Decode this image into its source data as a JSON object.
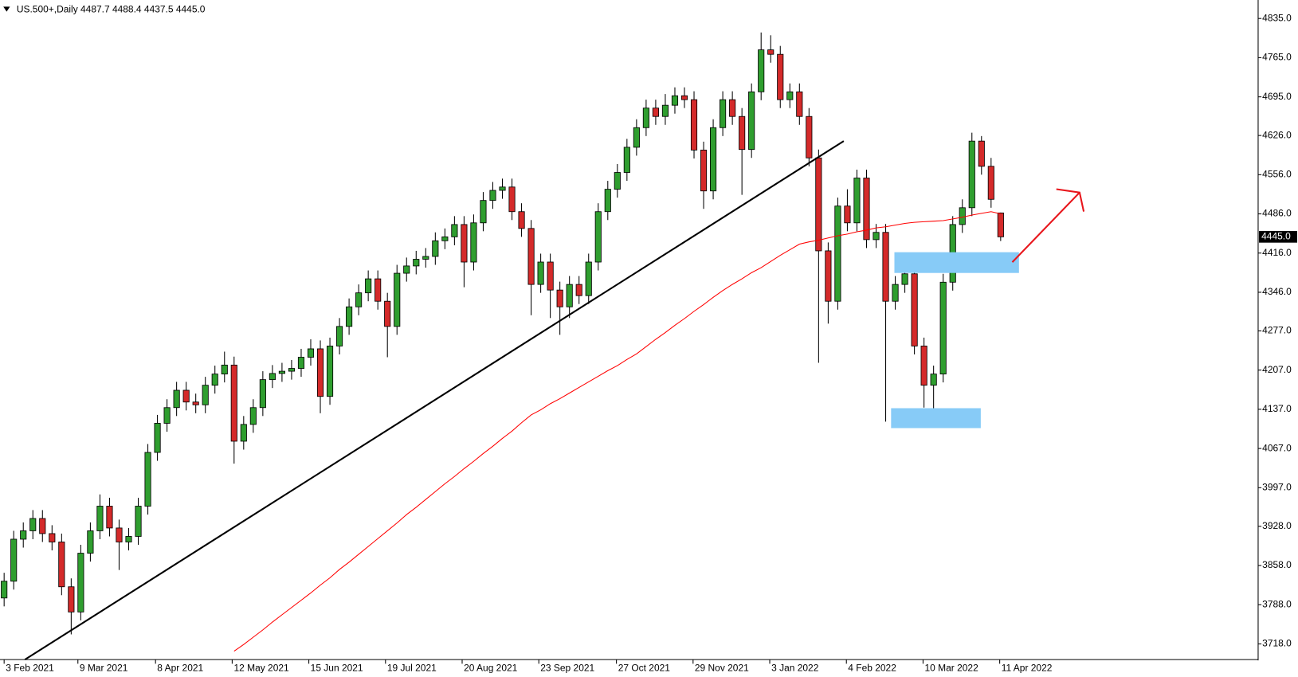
{
  "chart_data": {
    "type": "candlestick",
    "title": "US.500+,Daily  4487.7 4488.4 4437.5 4445.0",
    "open": [
      3800,
      3830,
      3905,
      3920,
      3942,
      3915,
      3900,
      3820,
      3775,
      3880,
      3920,
      3964,
      3925,
      3900,
      3910,
      3964,
      4060,
      4112,
      4140,
      4171,
      4150,
      4145,
      4180,
      4200,
      4216,
      4080,
      4110,
      4140,
      4190,
      4201,
      4205,
      4210,
      4230,
      4245,
      4160,
      4250,
      4285,
      4320,
      4345,
      4370,
      4330,
      4285,
      4380,
      4393,
      4405,
      4410,
      4438,
      4445,
      4467,
      4400,
      4470,
      4510,
      4528,
      4534,
      4490,
      4460,
      4360,
      4400,
      4350,
      4320,
      4360,
      4340,
      4400,
      4490,
      4530,
      4560,
      4605,
      4640,
      4675,
      4660,
      4680,
      4697,
      4690,
      4600,
      4527,
      4640,
      4690,
      4660,
      4601,
      4704,
      4779,
      4771,
      4690,
      4704,
      4660,
      4586,
      4420,
      4330,
      4500,
      4470,
      4550,
      4440,
      4453,
      4330,
      4360,
      4379,
      4250,
      4180,
      4200,
      4364,
      4467,
      4497,
      4616,
      4571,
      4487.7
    ],
    "high": [
      3845,
      3920,
      3935,
      3957,
      3957,
      3930,
      3915,
      3835,
      3895,
      3935,
      3985,
      3979,
      3940,
      3925,
      3979,
      4075,
      4127,
      4155,
      4186,
      4186,
      4165,
      4195,
      4215,
      4240,
      4231,
      4125,
      4155,
      4205,
      4216,
      4220,
      4225,
      4245,
      4262,
      4260,
      4265,
      4300,
      4335,
      4360,
      4385,
      4385,
      4345,
      4395,
      4408,
      4420,
      4425,
      4453,
      4460,
      4482,
      4482,
      4485,
      4525,
      4543,
      4549,
      4549,
      4505,
      4475,
      4415,
      4415,
      4365,
      4375,
      4375,
      4415,
      4505,
      4545,
      4575,
      4620,
      4655,
      4690,
      4690,
      4700,
      4712,
      4712,
      4705,
      4615,
      4655,
      4705,
      4705,
      4675,
      4719,
      4810,
      4805,
      4786,
      4719,
      4719,
      4675,
      4601,
      4435,
      4515,
      4530,
      4565,
      4565,
      4468,
      4468,
      4375,
      4394,
      4394,
      4265,
      4215,
      4379,
      4482,
      4512,
      4631,
      4625,
      4586,
      4488.4
    ],
    "low": [
      3785,
      3815,
      3890,
      3905,
      3900,
      3885,
      3805,
      3735,
      3760,
      3865,
      3905,
      3910,
      3850,
      3885,
      3895,
      3949,
      4045,
      4097,
      4125,
      4135,
      4130,
      4130,
      4165,
      4185,
      4040,
      4065,
      4095,
      4125,
      4175,
      4186,
      4190,
      4195,
      4215,
      4130,
      4145,
      4235,
      4270,
      4305,
      4330,
      4315,
      4230,
      4270,
      4365,
      4378,
      4390,
      4395,
      4423,
      4430,
      4355,
      4385,
      4455,
      4495,
      4513,
      4475,
      4445,
      4305,
      4345,
      4300,
      4270,
      4300,
      4325,
      4325,
      4385,
      4475,
      4515,
      4545,
      4590,
      4625,
      4645,
      4645,
      4665,
      4675,
      4585,
      4495,
      4512,
      4625,
      4645,
      4520,
      4586,
      4689,
      4756,
      4675,
      4675,
      4645,
      4571,
      4220,
      4290,
      4315,
      4455,
      4455,
      4425,
      4425,
      4115,
      4315,
      4345,
      4235,
      4140,
      4137,
      4185,
      4349,
      4452,
      4482,
      4556,
      4497,
      4437.5
    ],
    "close": [
      3830,
      3905,
      3920,
      3942,
      3915,
      3900,
      3820,
      3775,
      3880,
      3920,
      3964,
      3925,
      3900,
      3910,
      3964,
      4060,
      4112,
      4140,
      4171,
      4150,
      4145,
      4180,
      4200,
      4216,
      4080,
      4110,
      4140,
      4190,
      4201,
      4205,
      4210,
      4230,
      4245,
      4160,
      4250,
      4285,
      4320,
      4345,
      4370,
      4330,
      4285,
      4380,
      4393,
      4405,
      4410,
      4438,
      4445,
      4467,
      4400,
      4470,
      4510,
      4528,
      4534,
      4490,
      4460,
      4360,
      4400,
      4350,
      4320,
      4360,
      4340,
      4400,
      4490,
      4530,
      4560,
      4605,
      4640,
      4675,
      4660,
      4680,
      4697,
      4690,
      4600,
      4527,
      4640,
      4690,
      4660,
      4601,
      4704,
      4779,
      4771,
      4690,
      4704,
      4660,
      4586,
      4420,
      4330,
      4500,
      4470,
      4550,
      4440,
      4453,
      4330,
      4360,
      4379,
      4250,
      4180,
      4200,
      4364,
      4467,
      4497,
      4616,
      4571,
      4512,
      4445
    ],
    "up_color": "#2f9e2f",
    "down_color": "#d42a2a",
    "ma": {
      "color": "#ff0000",
      "values": [
        null,
        null,
        null,
        null,
        null,
        null,
        null,
        null,
        null,
        null,
        null,
        null,
        null,
        null,
        null,
        null,
        null,
        null,
        null,
        null,
        null,
        null,
        null,
        null,
        3705,
        3717,
        3730,
        3743,
        3757,
        3770,
        3783,
        3796,
        3809,
        3823,
        3836,
        3851,
        3864,
        3878,
        3892,
        3906,
        3920,
        3934,
        3949,
        3962,
        3976,
        3990,
        4004,
        4017,
        4031,
        4044,
        4058,
        4071,
        4085,
        4098,
        4113,
        4127,
        4136,
        4147,
        4156,
        4166,
        4176,
        4186,
        4196,
        4206,
        4215,
        4226,
        4236,
        4249,
        4262,
        4274,
        4287,
        4299,
        4312,
        4324,
        4337,
        4349,
        4360,
        4370,
        4381,
        4390,
        4401,
        4412,
        4422,
        4432,
        4436,
        4439,
        4443,
        4447,
        4450,
        4454,
        4457,
        4461,
        4463,
        4466,
        4469,
        4471,
        4472,
        4473,
        4474,
        4477,
        4480,
        4484,
        4487,
        4490,
        4486
      ]
    },
    "last_price": {
      "value": 4445,
      "label": "4445.0"
    },
    "xlim": [
      -0.43,
      130.87
    ],
    "ylim": [
      3690,
      4868
    ],
    "xticks": [
      {
        "value": 0,
        "label": "3 Feb 2021"
      },
      {
        "value": 7.7,
        "label": "9 Mar 2021"
      },
      {
        "value": 15.8,
        "label": "8 Apr 2021"
      },
      {
        "value": 23.8,
        "label": "12 May 2021"
      },
      {
        "value": 31.8,
        "label": "15 Jun 2021"
      },
      {
        "value": 39.8,
        "label": "19 Jul 2021"
      },
      {
        "value": 47.8,
        "label": "20 Aug 2021"
      },
      {
        "value": 55.8,
        "label": "23 Sep 2021"
      },
      {
        "value": 63.9,
        "label": "27 Oct 2021"
      },
      {
        "value": 71.9,
        "label": "29 Nov 2021"
      },
      {
        "value": 79.9,
        "label": "3 Jan 2022"
      },
      {
        "value": 87.9,
        "label": "4 Feb 2022"
      },
      {
        "value": 95.9,
        "label": "10 Mar 2022"
      },
      {
        "value": 103.9,
        "label": "11 Apr 2022"
      }
    ],
    "yticks": [
      {
        "value": 3718,
        "label": "3718.0"
      },
      {
        "value": 3788,
        "label": "3788.0"
      },
      {
        "value": 3858,
        "label": "3858.0"
      },
      {
        "value": 3928,
        "label": "3928.0"
      },
      {
        "value": 3997,
        "label": "3997.0"
      },
      {
        "value": 4067,
        "label": "4067.0"
      },
      {
        "value": 4137,
        "label": "4137.0"
      },
      {
        "value": 4207,
        "label": "4207.0"
      },
      {
        "value": 4277,
        "label": "4277.0"
      },
      {
        "value": 4346,
        "label": "4346.0"
      },
      {
        "value": 4416,
        "label": "4416.0"
      },
      {
        "value": 4486,
        "label": "4486.0"
      },
      {
        "value": 4556,
        "label": "4556.0"
      },
      {
        "value": 4626,
        "label": "4626.0"
      },
      {
        "value": 4695,
        "label": "4695.0"
      },
      {
        "value": 4765,
        "label": "4765.0"
      },
      {
        "value": 4835,
        "label": "4835.0"
      }
    ]
  }
}
